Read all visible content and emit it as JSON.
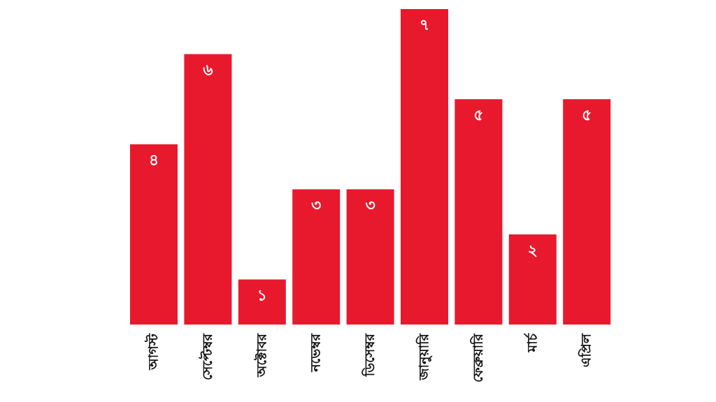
{
  "chart_data": {
    "type": "bar",
    "categories": [
      "আগস্ট",
      "সেপ্টেম্বর",
      "অক্টোবর",
      "নভেম্বর",
      "ডিসেম্বর",
      "জানুয়ারি",
      "ফেব্রুয়ারি",
      "মার্চ",
      "এপ্রিল"
    ],
    "values": [
      4,
      6,
      1,
      3,
      3,
      7,
      5,
      2,
      5
    ],
    "value_labels": [
      "৪",
      "৬",
      "১",
      "৩",
      "৩",
      "৭",
      "৫",
      "২",
      "৫"
    ],
    "color": "#e8192c"
  }
}
